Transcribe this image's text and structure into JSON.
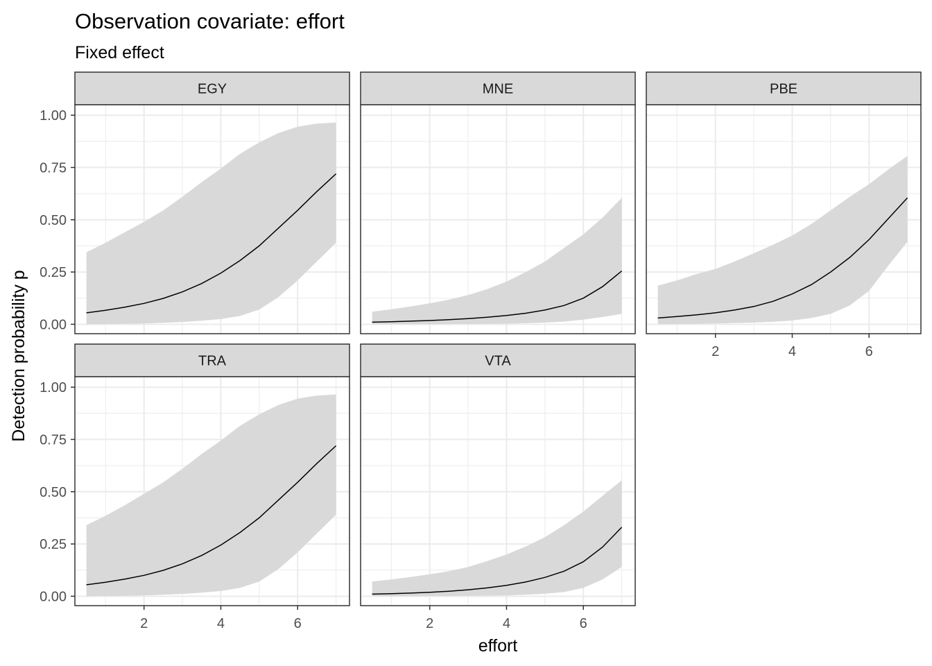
{
  "chart_data": {
    "type": "area",
    "title": "Observation covariate: effort",
    "subtitle": "Fixed effect",
    "xlabel": "effort",
    "ylabel": "Detection probability p",
    "xlim": [
      0.2,
      7.35
    ],
    "ylim": [
      -0.045,
      1.05
    ],
    "x_ticks": [
      2,
      4,
      6
    ],
    "x_tick_labels": [
      "2",
      "4",
      "6"
    ],
    "y_ticks": [
      0,
      0.25,
      0.5,
      0.75,
      1.0
    ],
    "y_tick_labels": [
      "0.00",
      "0.25",
      "0.50",
      "0.75",
      "1.00"
    ],
    "grid": true,
    "colors": {
      "ribbon": "#d9d9d9",
      "line": "#000000",
      "strip_fill": "#d9d9d9",
      "panel_border": "#333333",
      "grid": "#ebebeb"
    },
    "x": [
      0.5,
      1.0,
      1.5,
      2.0,
      2.5,
      3.0,
      3.5,
      4.0,
      4.5,
      5.0,
      5.5,
      6.0,
      6.5,
      7.0
    ],
    "panels": [
      {
        "name": "EGY",
        "fit": [
          0.055,
          0.067,
          0.082,
          0.1,
          0.124,
          0.155,
          0.195,
          0.245,
          0.305,
          0.375,
          0.46,
          0.545,
          0.635,
          0.72
        ],
        "lower": [
          0.0,
          0.001,
          0.002,
          0.004,
          0.007,
          0.011,
          0.017,
          0.025,
          0.04,
          0.07,
          0.13,
          0.21,
          0.3,
          0.39
        ],
        "upper": [
          0.345,
          0.39,
          0.44,
          0.49,
          0.545,
          0.61,
          0.68,
          0.745,
          0.815,
          0.87,
          0.915,
          0.945,
          0.96,
          0.965
        ]
      },
      {
        "name": "MNE",
        "fit": [
          0.01,
          0.012,
          0.015,
          0.018,
          0.022,
          0.027,
          0.034,
          0.042,
          0.053,
          0.068,
          0.09,
          0.125,
          0.18,
          0.255
        ],
        "lower": [
          0.0,
          0.0,
          0.0,
          0.0,
          0.001,
          0.001,
          0.002,
          0.003,
          0.005,
          0.008,
          0.013,
          0.022,
          0.035,
          0.05
        ],
        "upper": [
          0.06,
          0.072,
          0.085,
          0.1,
          0.118,
          0.14,
          0.168,
          0.205,
          0.25,
          0.3,
          0.365,
          0.43,
          0.51,
          0.605
        ]
      },
      {
        "name": "PBE",
        "fit": [
          0.03,
          0.037,
          0.045,
          0.055,
          0.068,
          0.085,
          0.11,
          0.145,
          0.19,
          0.25,
          0.32,
          0.405,
          0.505,
          0.605
        ],
        "lower": [
          0.0,
          0.001,
          0.002,
          0.004,
          0.006,
          0.008,
          0.012,
          0.018,
          0.03,
          0.05,
          0.09,
          0.16,
          0.28,
          0.395
        ],
        "upper": [
          0.185,
          0.21,
          0.24,
          0.265,
          0.3,
          0.34,
          0.38,
          0.425,
          0.48,
          0.545,
          0.61,
          0.67,
          0.74,
          0.805
        ]
      },
      {
        "name": "TRA",
        "fit": [
          0.055,
          0.067,
          0.082,
          0.1,
          0.124,
          0.155,
          0.195,
          0.245,
          0.305,
          0.375,
          0.46,
          0.545,
          0.635,
          0.72
        ],
        "lower": [
          0.0,
          0.001,
          0.002,
          0.004,
          0.007,
          0.011,
          0.017,
          0.025,
          0.04,
          0.07,
          0.13,
          0.21,
          0.3,
          0.39
        ],
        "upper": [
          0.34,
          0.385,
          0.435,
          0.49,
          0.545,
          0.61,
          0.68,
          0.745,
          0.815,
          0.87,
          0.915,
          0.945,
          0.96,
          0.965
        ]
      },
      {
        "name": "VTA",
        "fit": [
          0.01,
          0.012,
          0.015,
          0.019,
          0.024,
          0.031,
          0.04,
          0.052,
          0.068,
          0.09,
          0.12,
          0.165,
          0.235,
          0.33
        ],
        "lower": [
          0.0,
          0.0,
          0.0,
          0.001,
          0.001,
          0.002,
          0.003,
          0.004,
          0.007,
          0.012,
          0.02,
          0.04,
          0.08,
          0.14
        ],
        "upper": [
          0.07,
          0.08,
          0.092,
          0.105,
          0.12,
          0.14,
          0.168,
          0.2,
          0.238,
          0.283,
          0.34,
          0.405,
          0.48,
          0.555
        ]
      }
    ]
  }
}
